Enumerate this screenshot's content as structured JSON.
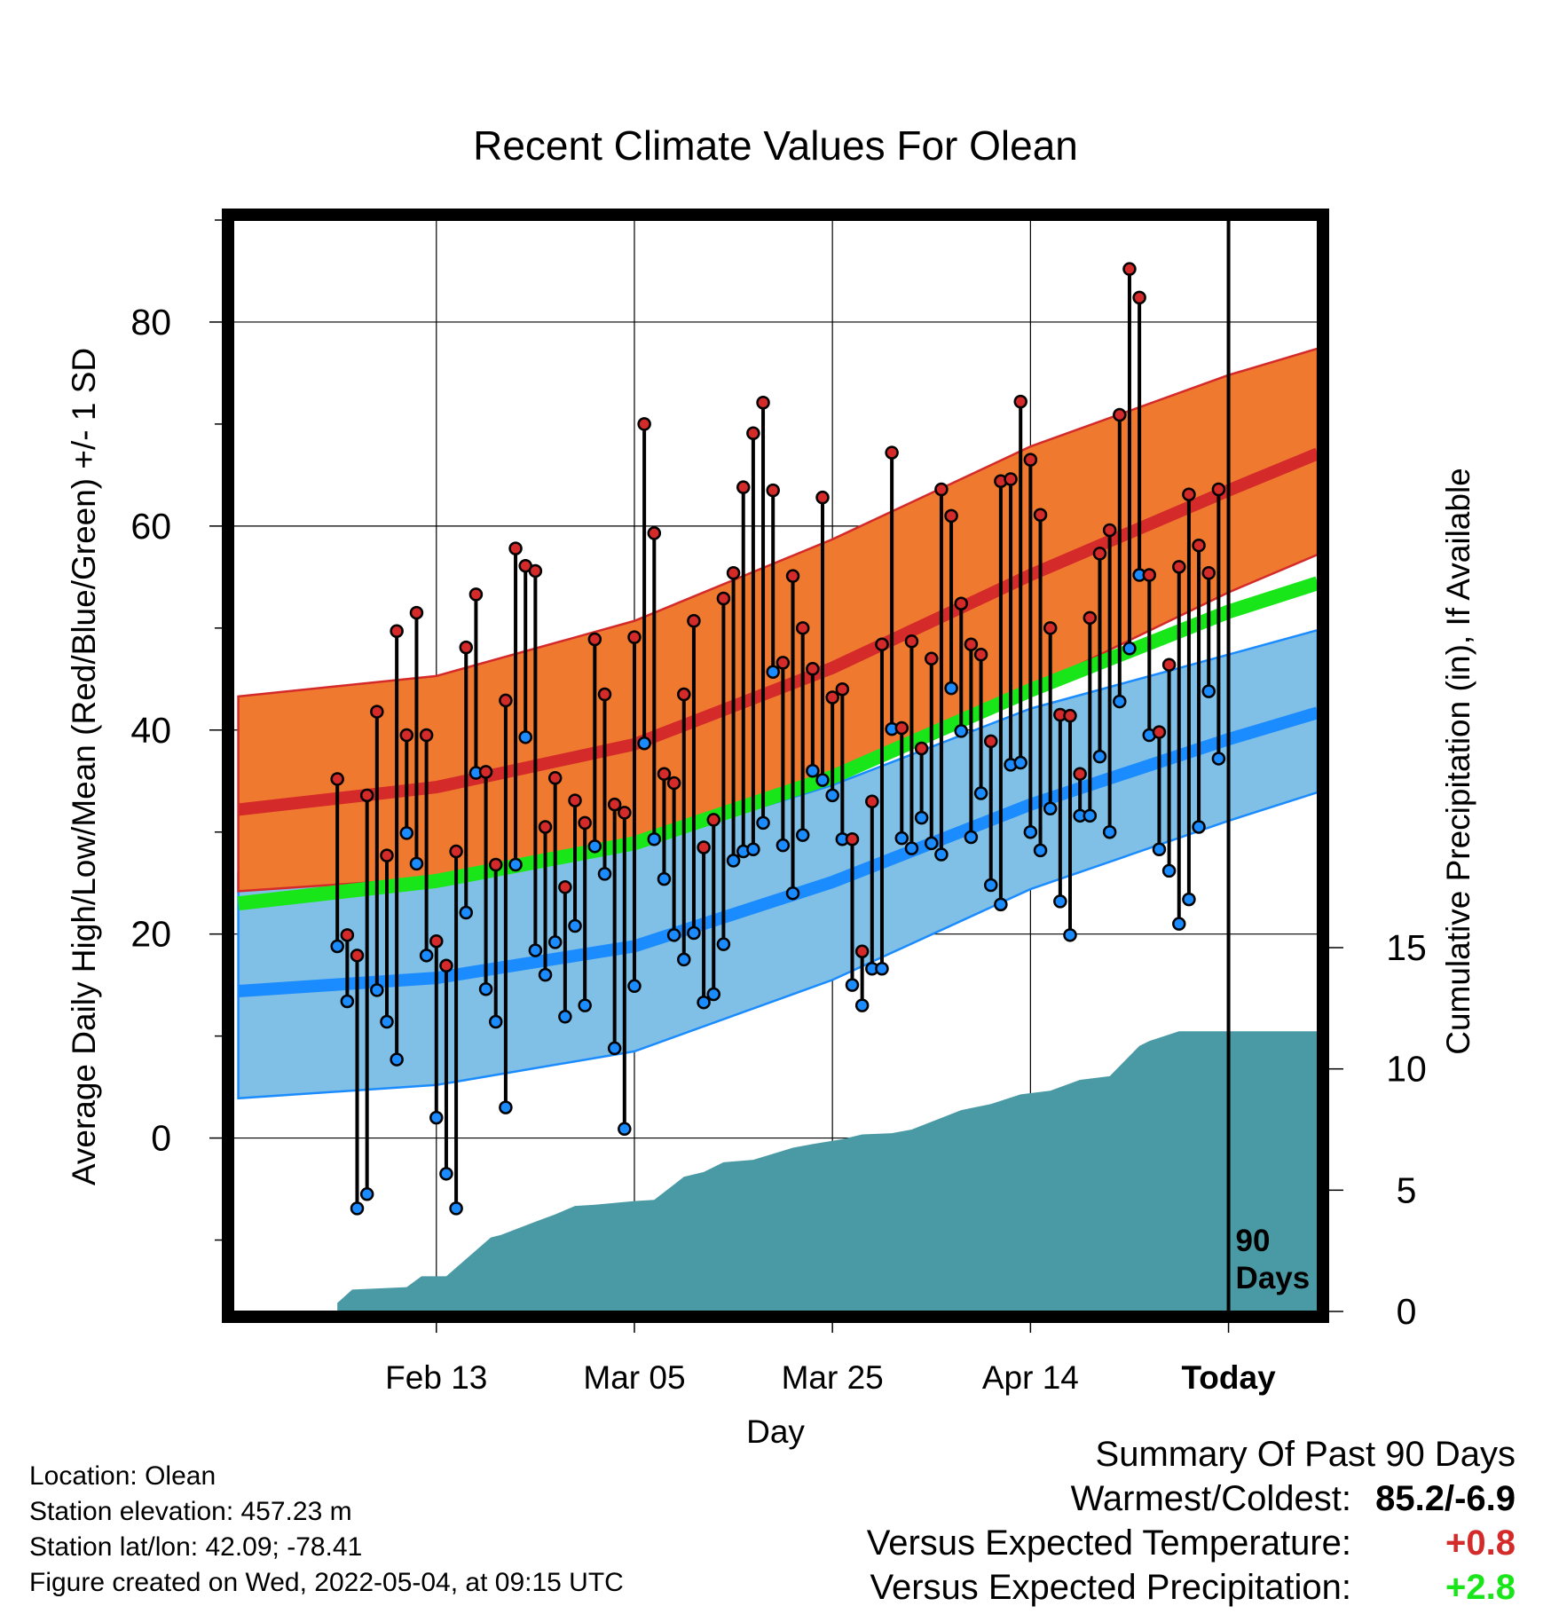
{
  "chart_data": {
    "type": "line",
    "title": "Recent Climate Values For Olean",
    "xlabel": "Day",
    "ylabel": "Average Daily High/Low/Mean (Red/Blue/Green) +/- 1 SD",
    "y2label": "Cumulative Precipitation (in), If Available",
    "x_tick_labels": [
      "Feb 13",
      "Mar 05",
      "Mar 25",
      "Apr 14",
      "Today"
    ],
    "y_ticks": [
      0,
      20,
      40,
      60,
      80
    ],
    "y2_ticks": [
      0,
      5,
      10,
      15
    ],
    "ylim": [
      -17,
      90
    ],
    "y2lim": [
      0,
      45
    ],
    "day_range": [
      -100.5,
      9
    ],
    "today_marker_label": [
      "90",
      "Days"
    ],
    "grid": true,
    "colors": {
      "high_band": "#f07930",
      "high_mean": "#d42a2a",
      "low_band": "#80bfe6",
      "low_mean": "#1a8cff",
      "avg_mean": "#19e619",
      "precip": "#4a9aa5",
      "high_point": "#d42a2a",
      "low_point": "#1a8cff"
    },
    "normals": {
      "days": [
        -100,
        -80,
        -60,
        -40,
        -20,
        0,
        9
      ],
      "high_mean": [
        32.2,
        34.4,
        38.6,
        46.1,
        55.2,
        63.5,
        67.1
      ],
      "high_upper": [
        43.3,
        45.3,
        50.7,
        58.7,
        67.8,
        74.8,
        77.4
      ],
      "high_lower": [
        24.2,
        25.5,
        28.6,
        35.5,
        44.1,
        53.5,
        57.2
      ],
      "low_mean": [
        14.4,
        15.7,
        18.8,
        25.1,
        32.7,
        39.1,
        41.7
      ],
      "low_upper": [
        26.0,
        26.8,
        28.6,
        34.6,
        42.1,
        47.4,
        49.8
      ],
      "low_lower": [
        3.9,
        5.2,
        8.5,
        15.5,
        24.4,
        31.1,
        33.9
      ],
      "avg_mean": [
        23.0,
        25.2,
        28.9,
        35.4,
        43.9,
        51.6,
        54.4
      ]
    },
    "daily": {
      "days_start": -90,
      "high": [
        35.2,
        19.9,
        17.9,
        33.6,
        41.8,
        27.7,
        49.7,
        39.5,
        51.5,
        39.5,
        19.3,
        16.9,
        28.1,
        48.1,
        53.3,
        35.9,
        26.8,
        42.9,
        57.8,
        56.1,
        55.6,
        30.5,
        35.3,
        24.6,
        33.1,
        30.9,
        48.9,
        43.5,
        32.7,
        31.9,
        49.1,
        70.0,
        59.3,
        35.7,
        34.8,
        43.5,
        50.7,
        28.5,
        31.2,
        52.9,
        55.4,
        63.8,
        69.1,
        72.1,
        63.5,
        46.6,
        55.1,
        50.0,
        46.0,
        62.8,
        43.2,
        44.0,
        29.3,
        18.3,
        33.0,
        48.4,
        67.2,
        40.2,
        48.7,
        38.2,
        47.0,
        63.6,
        61.0,
        52.4,
        48.4,
        47.4,
        38.9,
        64.4,
        64.6,
        72.2,
        66.5,
        61.1,
        50.0,
        41.5,
        41.4,
        35.7,
        51.0,
        57.3,
        59.6,
        70.9,
        85.2,
        82.4,
        55.2,
        39.8,
        46.4,
        56.0,
        63.1,
        58.1,
        55.4,
        63.6
      ],
      "low": [
        18.8,
        13.4,
        -6.9,
        -5.5,
        14.5,
        11.4,
        7.7,
        29.9,
        26.9,
        17.9,
        2.0,
        -3.5,
        -6.9,
        22.1,
        35.8,
        14.6,
        11.4,
        3.0,
        26.8,
        39.3,
        18.4,
        16.0,
        19.2,
        11.9,
        20.8,
        13.0,
        28.6,
        25.9,
        8.8,
        0.9,
        14.9,
        38.7,
        29.3,
        25.4,
        19.9,
        17.5,
        20.1,
        13.3,
        14.1,
        19.0,
        27.2,
        28.1,
        28.3,
        30.9,
        45.7,
        28.7,
        24.0,
        29.7,
        36.0,
        35.1,
        33.6,
        29.3,
        15.0,
        13.0,
        16.6,
        16.6,
        40.1,
        29.4,
        28.4,
        31.4,
        28.9,
        27.8,
        44.1,
        39.9,
        29.5,
        33.8,
        24.8,
        22.9,
        36.6,
        36.8,
        30.0,
        28.2,
        32.3,
        23.2,
        19.9,
        31.6,
        31.6,
        37.4,
        30.0,
        42.8,
        48.0,
        55.2,
        39.5,
        28.3,
        26.2,
        21.0,
        23.4,
        30.5,
        43.8,
        37.2
      ]
    },
    "precip": {
      "day": [
        -90,
        -88.5,
        -83,
        -81.5,
        -79,
        -74.5,
        -73.5,
        -70,
        -68,
        -66,
        -64,
        -60,
        -58,
        -55,
        -53,
        -51,
        -48,
        -44,
        -42,
        -39,
        -37,
        -34,
        -32,
        -27,
        -24,
        -21,
        -18,
        -15,
        -12,
        -9,
        -8,
        -5,
        9
      ],
      "value": [
        0.35,
        0.9,
        1.0,
        1.45,
        1.45,
        3.05,
        3.15,
        3.7,
        4.0,
        4.35,
        4.4,
        4.55,
        4.6,
        5.55,
        5.75,
        6.15,
        6.25,
        6.75,
        6.9,
        7.1,
        7.3,
        7.35,
        7.5,
        8.3,
        8.55,
        8.95,
        9.1,
        9.55,
        9.7,
        10.95,
        11.15,
        11.55,
        11.55
      ]
    }
  },
  "info": {
    "location": "Location: Olean",
    "elevation": "Station elevation: 457.23 m",
    "latlon": "Station lat/lon: 42.09; -78.41",
    "created": "Figure created on Wed, 2022-05-04, at 09:15 UTC"
  },
  "summary": {
    "heading": "Summary Of Past 90 Days",
    "warmest_coldest_label": "Warmest/Coldest:",
    "warmest_coldest_value": "85.2/-6.9",
    "temp_label": "Versus Expected Temperature:",
    "temp_value": "+0.8",
    "temp_color": "#d42a2a",
    "precip_label": "Versus Expected Precipitation:",
    "precip_value": "+2.8",
    "precip_color": "#19e619"
  }
}
